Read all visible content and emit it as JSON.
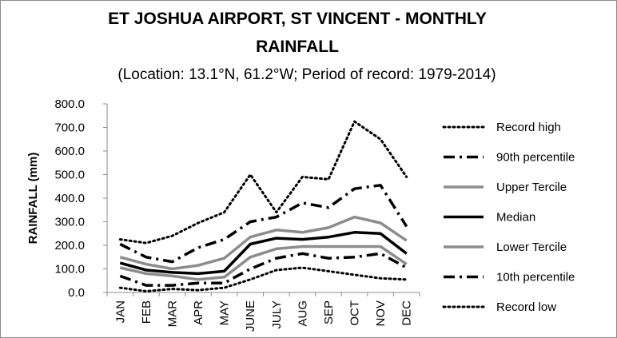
{
  "chart_data": {
    "type": "line",
    "title_lines": [
      "ET JOSHUA AIRPORT, ST VINCENT - MONTHLY",
      "RAINFALL"
    ],
    "subtitle": "(Location: 13.1°N, 61.2°W; Period of record: 1979-2014)",
    "xlabel": "",
    "ylabel": "RAINFALL (mm)",
    "ylim": [
      0,
      800
    ],
    "ytick_labels": [
      "0.0",
      "100.0",
      "200.0",
      "300.0",
      "400.0",
      "500.0",
      "600.0",
      "700.0",
      "800.0"
    ],
    "categories": [
      "JAN",
      "FEB",
      "MAR",
      "APR",
      "MAY",
      "JUNE",
      "JULY",
      "AUG",
      "SEP",
      "OCT",
      "NOV",
      "DEC"
    ],
    "grid": false,
    "legend_position": "right",
    "series": [
      {
        "name": "Record high",
        "style": "dotted",
        "color": "#000000",
        "values": [
          225,
          210,
          240,
          295,
          340,
          500,
          340,
          490,
          480,
          725,
          650,
          490
        ]
      },
      {
        "name": "90th percentile",
        "style": "dashdot",
        "color": "#000000",
        "values": [
          205,
          150,
          130,
          190,
          225,
          300,
          320,
          380,
          360,
          440,
          455,
          280
        ]
      },
      {
        "name": "Upper Tercile",
        "style": "solid",
        "color": "#8c8c8c",
        "values": [
          150,
          120,
          100,
          115,
          145,
          235,
          265,
          255,
          275,
          320,
          295,
          220
        ]
      },
      {
        "name": "Median",
        "style": "solid",
        "color": "#000000",
        "values": [
          125,
          95,
          85,
          80,
          90,
          205,
          230,
          225,
          235,
          255,
          250,
          165
        ]
      },
      {
        "name": "Lower Tercile",
        "style": "solid",
        "color": "#8c8c8c",
        "values": [
          105,
          80,
          70,
          55,
          65,
          150,
          185,
          195,
          195,
          195,
          195,
          120
        ]
      },
      {
        "name": "10th percentile",
        "style": "dashdot",
        "color": "#000000",
        "values": [
          70,
          30,
          30,
          40,
          40,
          100,
          145,
          165,
          145,
          150,
          165,
          105
        ]
      },
      {
        "name": "Record low",
        "style": "dotted",
        "color": "#000000",
        "values": [
          20,
          5,
          15,
          10,
          20,
          55,
          95,
          105,
          90,
          75,
          60,
          55
        ]
      }
    ]
  }
}
